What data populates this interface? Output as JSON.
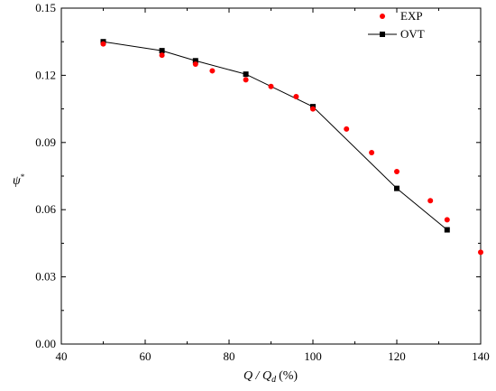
{
  "chart_data": {
    "type": "scatter",
    "xlabel": {
      "main": "Q / Q",
      "sub": "d",
      "unit": "(%)"
    },
    "ylabel": {
      "main": "ψ",
      "sup": "*"
    },
    "xlim": [
      40,
      140
    ],
    "ylim": [
      0.0,
      0.15
    ],
    "xticks": [
      "40",
      "60",
      "80",
      "100",
      "120",
      "140"
    ],
    "yticks": [
      "0.00",
      "0.03",
      "0.06",
      "0.09",
      "0.12",
      "0.15"
    ],
    "legend_position": "top-right",
    "series": [
      {
        "name": "EXP",
        "style": "markers",
        "marker": "circle",
        "color": "#ff0000",
        "x": [
          50,
          64,
          72,
          76,
          84,
          90,
          96,
          100,
          108,
          114,
          120,
          128,
          132,
          140
        ],
        "y": [
          0.134,
          0.129,
          0.125,
          0.122,
          0.118,
          0.115,
          0.1105,
          0.105,
          0.096,
          0.0855,
          0.077,
          0.064,
          0.0555,
          0.041
        ]
      },
      {
        "name": "OVT",
        "style": "line-markers",
        "marker": "square",
        "color": "#000000",
        "x": [
          50,
          64,
          72,
          84,
          100,
          120,
          132
        ],
        "y": [
          0.135,
          0.131,
          0.1265,
          0.1205,
          0.106,
          0.0695,
          0.051
        ]
      }
    ]
  }
}
